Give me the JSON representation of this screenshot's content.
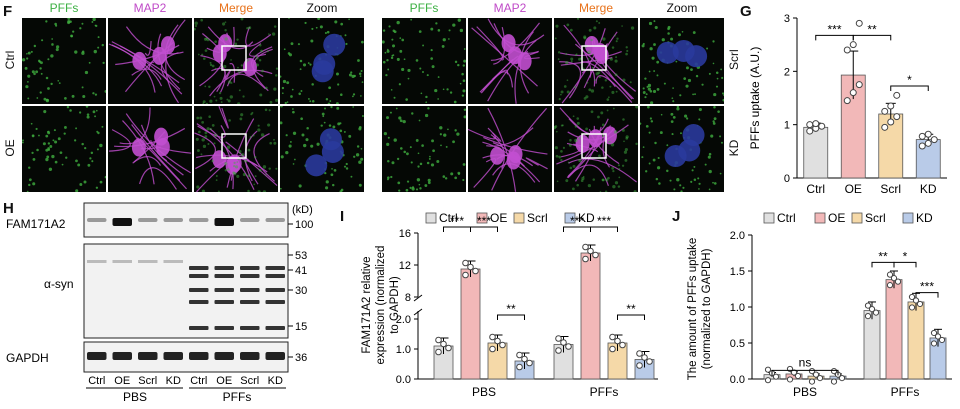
{
  "panels": {
    "F": {
      "label": "F"
    },
    "G": {
      "label": "G"
    },
    "H": {
      "label": "H"
    },
    "I": {
      "label": "I"
    },
    "J": {
      "label": "J"
    }
  },
  "micro": {
    "headers": [
      "PFFs",
      "MAP2",
      "Merge",
      "Zoom"
    ],
    "left_rows": [
      "Ctrl",
      "OE"
    ],
    "right_rows": [
      "Scrl",
      "KD"
    ],
    "colors": {
      "pffs": "#3cb043",
      "map2": "#c04ac8",
      "merge": "#e8731c",
      "zoom": "#111111"
    }
  },
  "blot": {
    "unit": "(kD)",
    "labels": [
      "FAM171A2",
      "α-syn",
      "GAPDH"
    ],
    "markers": [
      "100",
      "53",
      "41",
      "30",
      "15",
      "36"
    ],
    "lanes": [
      "Ctrl",
      "OE",
      "Scrl",
      "KD",
      "Ctrl",
      "OE",
      "Scrl",
      "KD"
    ],
    "groups": [
      "PBS",
      "PFFs"
    ]
  },
  "chart_data": [
    {
      "type": "bar",
      "panel": "G",
      "categories": [
        "Ctrl",
        "OE",
        "Scrl",
        "KD"
      ],
      "values": [
        0.95,
        1.93,
        1.2,
        0.72
      ],
      "errors": [
        0.08,
        0.45,
        0.2,
        0.1
      ],
      "points": [
        [
          0.88,
          0.93,
          0.97,
          1.0,
          1.02
        ],
        [
          1.45,
          1.6,
          1.75,
          2.4,
          2.5,
          2.9
        ],
        [
          0.95,
          1.05,
          1.15,
          1.25,
          1.35,
          1.55
        ],
        [
          0.6,
          0.65,
          0.72,
          0.78,
          0.82
        ]
      ],
      "ylabel": "PFFs uptake (A.U.)",
      "ylim": [
        0,
        3
      ],
      "yticks": [
        "0",
        "1",
        "2",
        "3"
      ],
      "colors": [
        "#e0e0e0",
        "#f2b8b8",
        "#f5d9a8",
        "#b9cbe8"
      ],
      "significance": [
        {
          "from": "Ctrl",
          "to": "OE",
          "label": "***"
        },
        {
          "from": "OE",
          "to": "Scrl",
          "label": "**"
        },
        {
          "from": "Scrl",
          "to": "KD",
          "label": "*"
        }
      ]
    },
    {
      "type": "bar",
      "panel": "I",
      "legend": [
        "Ctrl",
        "OE",
        "Scrl",
        "KD"
      ],
      "categories": [
        "PBS",
        "PFFs"
      ],
      "series": [
        {
          "name": "Ctrl",
          "values": [
            1.1,
            1.15
          ]
        },
        {
          "name": "OE",
          "values": [
            11.5,
            13.5
          ]
        },
        {
          "name": "Scrl",
          "values": [
            1.2,
            1.2
          ]
        },
        {
          "name": "KD",
          "values": [
            0.6,
            0.65
          ]
        }
      ],
      "ylabel": "FAM171A2 relative expression (normalized to GAPDH)",
      "axis_break": [
        2,
        8
      ],
      "yticks_lower": [
        "0.0",
        "1.0",
        "2.0"
      ],
      "yticks_upper": [
        "8",
        "12",
        "16"
      ],
      "significance": [
        {
          "group": "PBS",
          "labels": [
            "***",
            "***",
            "**"
          ]
        },
        {
          "group": "PFFs",
          "labels": [
            "***",
            "***",
            "**"
          ]
        }
      ],
      "colors": [
        "#e0e0e0",
        "#f2b8b8",
        "#f5d9a8",
        "#b9cbe8"
      ]
    },
    {
      "type": "bar",
      "panel": "J",
      "legend": [
        "Ctrl",
        "OE",
        "Scrl",
        "KD"
      ],
      "categories": [
        "PBS",
        "PFFs"
      ],
      "series": [
        {
          "name": "Ctrl",
          "values": [
            0.06,
            0.95
          ]
        },
        {
          "name": "OE",
          "values": [
            0.07,
            1.38
          ]
        },
        {
          "name": "Scrl",
          "values": [
            0.04,
            1.07
          ]
        },
        {
          "name": "KD",
          "values": [
            0.04,
            0.57
          ]
        }
      ],
      "ylabel": "The amount of PFFs uptake (normalized to GAPDH)",
      "ylim": [
        0,
        2
      ],
      "yticks": [
        "0.0",
        "0.5",
        "1.0",
        "1.5",
        "2.0"
      ],
      "significance": [
        {
          "group": "PBS",
          "labels": [
            "ns"
          ]
        },
        {
          "group": "PFFs",
          "labels": [
            "**",
            "*",
            "***"
          ]
        }
      ],
      "colors": [
        "#e0e0e0",
        "#f2b8b8",
        "#f5d9a8",
        "#b9cbe8"
      ]
    }
  ]
}
